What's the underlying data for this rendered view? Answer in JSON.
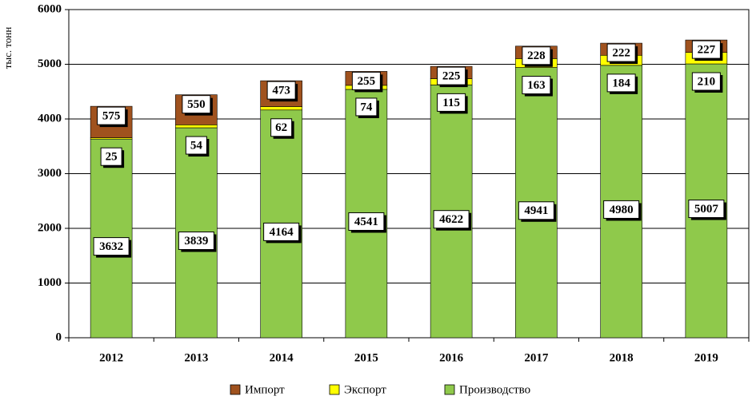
{
  "chart_data": {
    "type": "bar",
    "stacked": true,
    "categories": [
      "2012",
      "2013",
      "2014",
      "2015",
      "2016",
      "2017",
      "2018",
      "2019"
    ],
    "series": [
      {
        "name": "Производство",
        "color": "#8fc94b",
        "values": [
          3632,
          3839,
          4164,
          4541,
          4622,
          4941,
          4980,
          5007
        ]
      },
      {
        "name": "Экспорт",
        "color": "#ffff00",
        "values": [
          25,
          54,
          62,
          74,
          115,
          163,
          184,
          210
        ]
      },
      {
        "name": "Импорт",
        "color": "#a0521e",
        "values": [
          575,
          550,
          473,
          255,
          225,
          228,
          222,
          227
        ]
      }
    ],
    "legend_order": [
      "Импорт",
      "Экспорт",
      "Производство"
    ],
    "ylabel": "тыс. тонн",
    "ylim": [
      0,
      6000
    ],
    "yticks": [
      0,
      1000,
      2000,
      3000,
      4000,
      5000,
      6000
    ],
    "grid": true,
    "legend_position": "bottom"
  }
}
